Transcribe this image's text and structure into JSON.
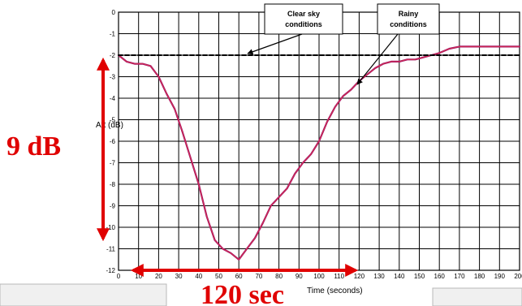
{
  "chart_data": {
    "type": "line",
    "title": "",
    "xlabel": "Time (seconds)",
    "ylabel": "Att (dB)",
    "xlim": [
      0,
      200
    ],
    "ylim": [
      -12,
      0
    ],
    "x_ticks": [
      "0",
      "10",
      "20",
      "30",
      "40",
      "50",
      "60",
      "70",
      "80",
      "90",
      "100",
      "110",
      "120",
      "130",
      "140",
      "150",
      "160",
      "170",
      "180",
      "190",
      "200"
    ],
    "y_ticks": [
      "0",
      "-1",
      "-2",
      "-3",
      "-4",
      "-5",
      "-6",
      "-7",
      "-8",
      "-9",
      "-10",
      "-11",
      "-12"
    ],
    "grid": true,
    "series": [
      {
        "name": "Rainy conditions",
        "color": "#a0186a",
        "x": [
          0,
          4,
          8,
          12,
          16,
          20,
          24,
          28,
          32,
          36,
          40,
          44,
          48,
          52,
          56,
          60,
          64,
          68,
          72,
          76,
          80,
          84,
          88,
          92,
          96,
          100,
          104,
          108,
          112,
          116,
          120,
          124,
          128,
          132,
          136,
          140,
          144,
          148,
          152,
          156,
          160,
          165,
          170,
          175,
          180,
          185,
          190,
          195,
          200
        ],
        "y": [
          -2.0,
          -2.3,
          -2.4,
          -2.4,
          -2.5,
          -3.0,
          -3.8,
          -4.5,
          -5.6,
          -6.8,
          -8.0,
          -9.5,
          -10.6,
          -11.0,
          -11.2,
          -11.5,
          -11.0,
          -10.5,
          -9.8,
          -9.0,
          -8.6,
          -8.2,
          -7.5,
          -7.0,
          -6.6,
          -6.0,
          -5.1,
          -4.4,
          -3.9,
          -3.6,
          -3.2,
          -2.9,
          -2.6,
          -2.4,
          -2.3,
          -2.3,
          -2.2,
          -2.2,
          -2.1,
          -2.0,
          -1.9,
          -1.7,
          -1.6,
          -1.6,
          -1.6,
          -1.6,
          -1.6,
          -1.6,
          -1.6
        ]
      },
      {
        "name": "Clear sky conditions",
        "color": "#000000",
        "dashed": true,
        "x": [
          0,
          200
        ],
        "y": [
          -2,
          -2
        ]
      }
    ],
    "annotations": {
      "clear_sky_box": "Clear sky\nconditions",
      "rainy_box": "Rainy\nconditions",
      "range_label": "9 dB",
      "time_label": "120 sec"
    },
    "colors": {
      "annotation_red": "#e00000",
      "grid": "#000000"
    }
  }
}
